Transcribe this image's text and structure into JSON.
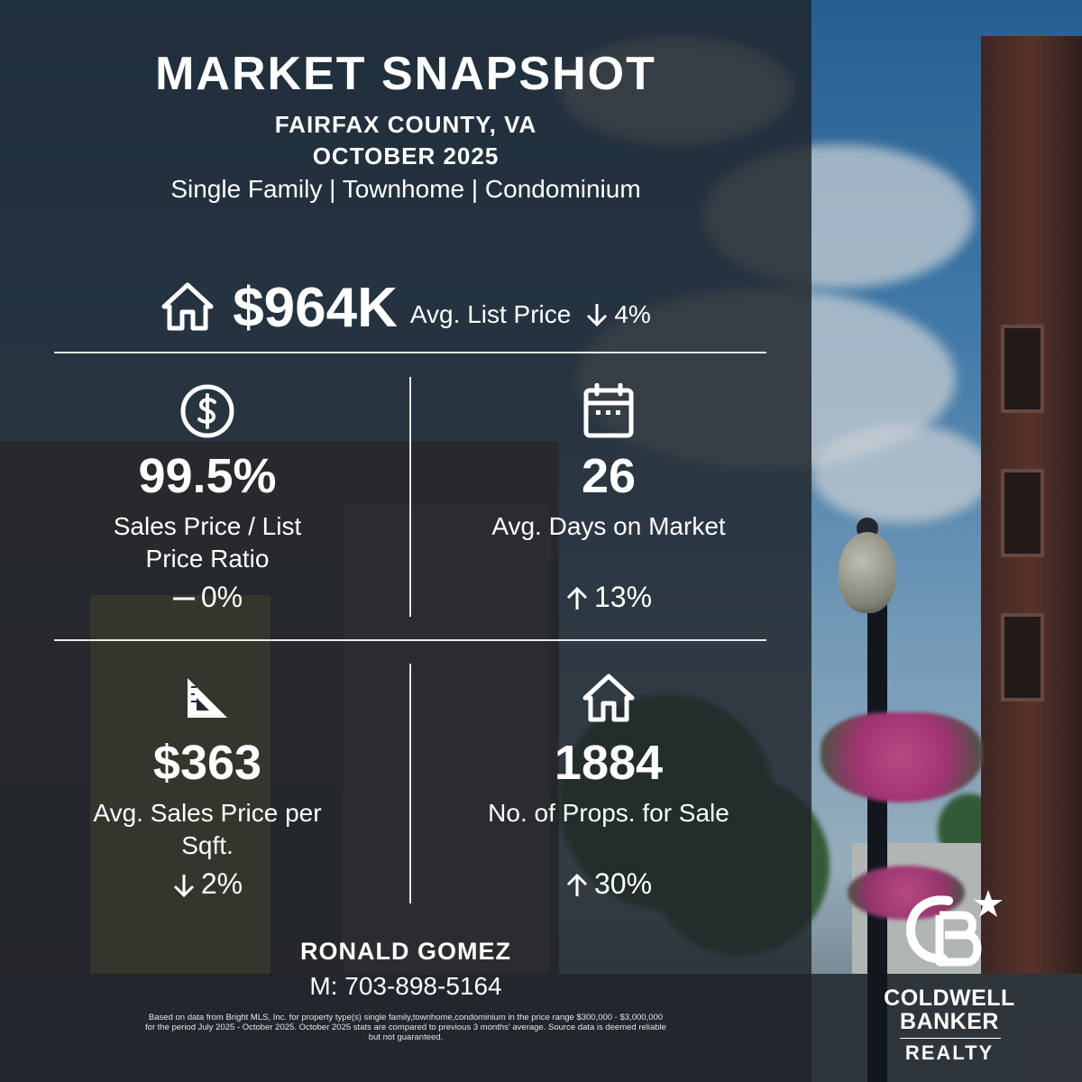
{
  "header": {
    "title": "MARKET SNAPSHOT",
    "region": "FAIRFAX COUNTY, VA",
    "period": "OCTOBER 2025",
    "property_types": "Single Family | Townhome | Condominium"
  },
  "headline": {
    "icon": "house-icon",
    "value": "$964K",
    "label": "Avg. List Price",
    "change_direction": "down",
    "change": "4%"
  },
  "stats": [
    {
      "icon": "dollar-circle-icon",
      "value": "99.5%",
      "label_line1": "Sales Price / List",
      "label_line2": "Price Ratio",
      "change_direction": "flat",
      "change": "0%"
    },
    {
      "icon": "calendar-icon",
      "value": "26",
      "label_line1": "Avg. Days on Market",
      "label_line2": "",
      "change_direction": "up",
      "change": "13%"
    },
    {
      "icon": "ruler-triangle-icon",
      "value": "$363",
      "label_line1": "Avg. Sales Price per",
      "label_line2": "Sqft.",
      "change_direction": "down",
      "change": "2%"
    },
    {
      "icon": "house-icon",
      "value": "1884",
      "label_line1": "No. of Props. for Sale",
      "label_line2": "",
      "change_direction": "up",
      "change": "30%"
    }
  ],
  "agent": {
    "name": "RONALD GOMEZ",
    "phone": "M: 703-898-5164"
  },
  "disclaimer": {
    "line1": "Based on data from Bright MLS, Inc. for property type(s) single family,townhome,condominium in the price range $300,000 - $3,000,000",
    "line2": "for the period July 2025 - October 2025. October 2025 stats are compared to previous 3 months' average. Source data is deemed reliable",
    "line3": "but not guaranteed."
  },
  "logo": {
    "line1": "COLDWELL",
    "line2": "BANKER",
    "line3": "REALTY"
  },
  "colors": {
    "text": "#ffffff",
    "overlay": "#1e242a"
  }
}
